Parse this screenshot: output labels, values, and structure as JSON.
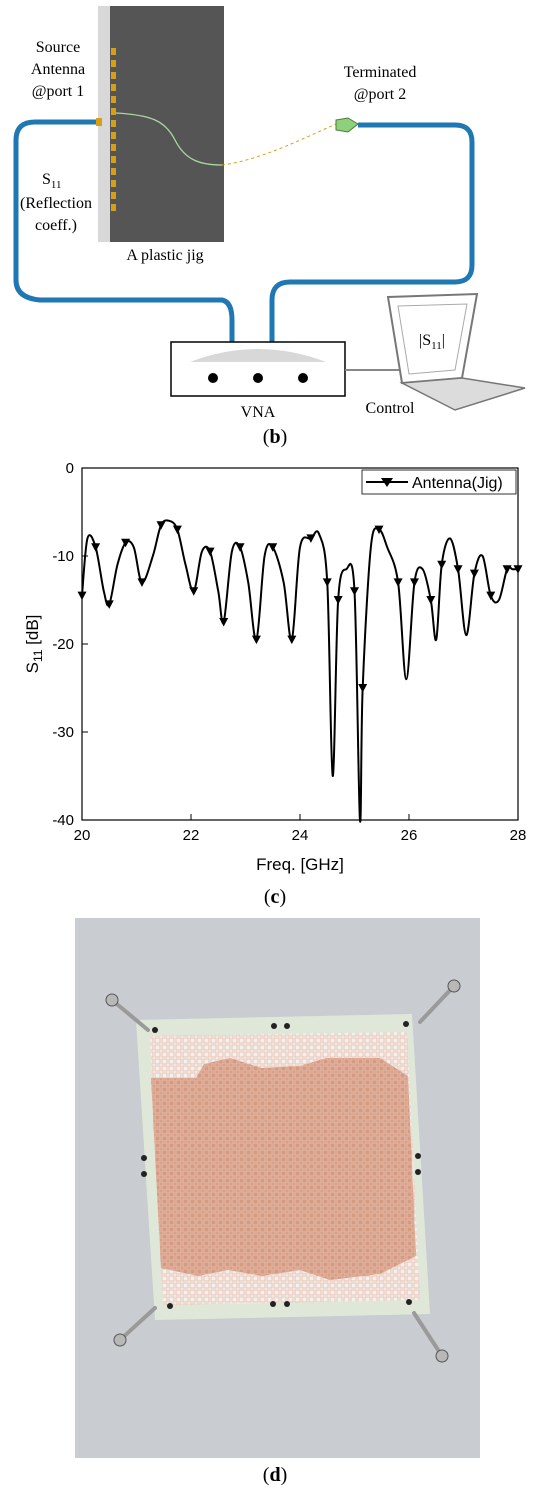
{
  "panel_b": {
    "source_label": [
      "Source",
      "Antenna",
      "@port 1"
    ],
    "terminated_label": [
      "Terminated",
      "@port 2"
    ],
    "s11_label": [
      "(Reflection",
      "coeff.)"
    ],
    "s11_main": "S",
    "s11_sub": "11",
    "jig_label": "A plastic jig",
    "vna_label": "VNA",
    "control_label": "Control",
    "screen_main": "|S",
    "screen_sub": "11",
    "screen_tail": "|",
    "caption_letter": "b",
    "colors": {
      "cable": "#1f77b4",
      "jig": "#555555",
      "antenna": "#d4a017"
    }
  },
  "panel_c": {
    "caption_letter": "c",
    "chart_data": {
      "type": "line",
      "xlabel": "Freq. [GHz]",
      "ylabel_main": "S",
      "ylabel_sub": "11",
      "ylabel_tail": " [dB]",
      "xlim": [
        20,
        28
      ],
      "ylim": [
        -40,
        0
      ],
      "xticks": [
        "20",
        "22",
        "24",
        "26",
        "28"
      ],
      "yticks": [
        "0",
        "-10",
        "-20",
        "-30",
        "-40"
      ],
      "legend": "Antenna(Jig)",
      "legend_position": "top-right",
      "series": [
        {
          "name": "Antenna(Jig)",
          "x": [
            20.0,
            20.1,
            20.25,
            20.4,
            20.5,
            20.65,
            20.8,
            20.95,
            21.1,
            21.3,
            21.45,
            21.6,
            21.75,
            21.9,
            22.05,
            22.2,
            22.35,
            22.5,
            22.6,
            22.75,
            22.9,
            23.05,
            23.2,
            23.35,
            23.5,
            23.7,
            23.85,
            24.0,
            24.2,
            24.35,
            24.5,
            24.6,
            24.7,
            24.85,
            25.0,
            25.1,
            25.15,
            25.3,
            25.45,
            25.6,
            25.8,
            25.95,
            26.1,
            26.25,
            26.4,
            26.5,
            26.6,
            26.75,
            26.9,
            27.05,
            27.2,
            27.35,
            27.5,
            27.65,
            27.8,
            27.9,
            28.0
          ],
          "y": [
            -14.5,
            -8.0,
            -9.0,
            -14.0,
            -15.5,
            -11.0,
            -8.5,
            -9.0,
            -13.0,
            -10.0,
            -6.5,
            -6.0,
            -7.0,
            -11.0,
            -14.0,
            -9.5,
            -9.5,
            -14.0,
            -17.5,
            -9.5,
            -9.0,
            -13.0,
            -19.5,
            -10.0,
            -9.0,
            -13.0,
            -19.5,
            -9.0,
            -8.0,
            -7.5,
            -13.0,
            -35.0,
            -15.0,
            -11.5,
            -14.0,
            -40.0,
            -25.0,
            -9.0,
            -7.0,
            -9.0,
            -13.0,
            -24.0,
            -13.0,
            -11.5,
            -15.0,
            -19.5,
            -11.0,
            -8.0,
            -11.5,
            -19.0,
            -12.0,
            -10.0,
            -14.5,
            -15.0,
            -11.5,
            -11.5,
            -11.5
          ]
        }
      ]
    }
  },
  "panel_d": {
    "caption_letter": "d",
    "colors": {
      "background": "#c9ccd0",
      "board": "#dfe8d8",
      "copper": "#d59a82"
    }
  }
}
